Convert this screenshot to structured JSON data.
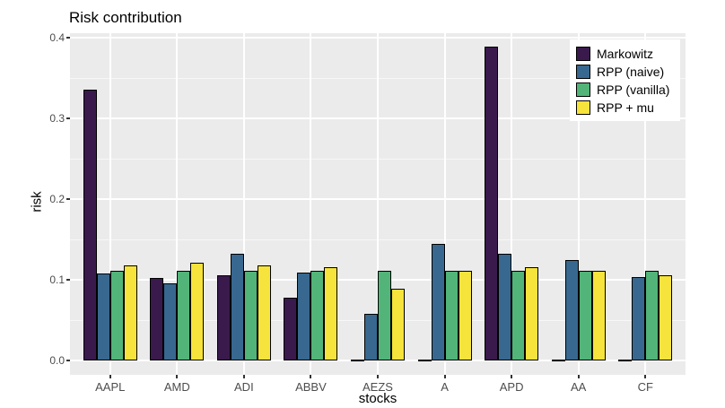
{
  "chart_data": {
    "type": "bar",
    "title": "Risk contribution",
    "xlabel": "stocks",
    "ylabel": "risk",
    "categories": [
      "AAPL",
      "AMD",
      "ADI",
      "ABBV",
      "AEZS",
      "A",
      "APD",
      "AA",
      "CF"
    ],
    "series": [
      {
        "name": "Markowitz",
        "color": "#3a1a4c",
        "values": [
          0.335,
          0.102,
          0.105,
          0.078,
          0.001,
          0.001,
          0.389,
          0.001,
          0.001
        ]
      },
      {
        "name": "RPP (naive)",
        "color": "#38688f",
        "values": [
          0.108,
          0.096,
          0.132,
          0.109,
          0.058,
          0.144,
          0.132,
          0.124,
          0.103
        ]
      },
      {
        "name": "RPP (vanilla)",
        "color": "#52b478",
        "values": [
          0.111,
          0.111,
          0.111,
          0.111,
          0.111,
          0.111,
          0.111,
          0.111,
          0.111
        ]
      },
      {
        "name": "RPP + mu",
        "color": "#f6e33b",
        "values": [
          0.118,
          0.121,
          0.118,
          0.115,
          0.089,
          0.111,
          0.115,
          0.111,
          0.106
        ]
      }
    ],
    "ylim": [
      0.0,
      0.4
    ],
    "yticks": [
      0.0,
      0.1,
      0.2,
      0.3,
      0.4
    ],
    "ytick_labels": [
      "0.0",
      "0.1",
      "0.2",
      "0.3",
      "0.4"
    ],
    "grid": true,
    "legend_position": "top-right-inside",
    "colors": {
      "panel_background": "#ebebeb",
      "grid_lines": "#ffffff",
      "bar_outline": "#000000",
      "axis_text": "#4d4d4d",
      "title_text": "#000000",
      "legend_background": "#ffffff"
    }
  }
}
